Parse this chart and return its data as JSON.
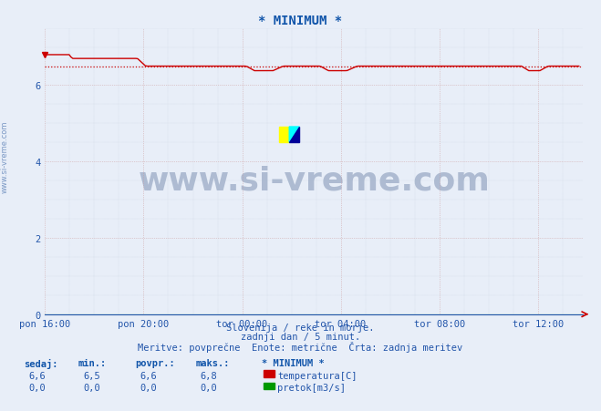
{
  "title": "* MINIMUM *",
  "title_color": "#1155aa",
  "bg_color": "#e8eef8",
  "temp_color": "#cc0000",
  "pretok_color": "#009900",
  "axis_color": "#2255aa",
  "footer_color": "#2255aa",
  "sidebar_color": "#6688bb",
  "watermark_color": "#1a3a70",
  "grid_major_color": "#cc9999",
  "grid_minor_color": "#aabbcc",
  "x_tick_labels": [
    "pon 16:00",
    "pon 20:00",
    "tor 00:00",
    "tor 04:00",
    "tor 08:00",
    "tor 12:00"
  ],
  "x_tick_positions": [
    0,
    240,
    480,
    720,
    960,
    1200
  ],
  "y_ticks": [
    0,
    2,
    4,
    6
  ],
  "ylim_max": 7.5,
  "xlim_max": 1310,
  "temp_min_val": 6.5,
  "subtitle1": "Slovenija / reke in morje.",
  "subtitle2": "zadnji dan / 5 minut.",
  "subtitle3": "Meritve: povprečne  Enote: metrične  Črta: zadnja meritev",
  "watermark": "www.si-vreme.com",
  "sidebar_txt": "www.si-vreme.com",
  "stats_hdr": [
    "sedaj:",
    "min.:",
    "povpr.:",
    "maks.:",
    "* MINIMUM *"
  ],
  "stats_temp": [
    "6,6",
    "6,5",
    "6,6",
    "6,8"
  ],
  "stats_pretok": [
    "0,0",
    "0,0",
    "0,0",
    "0,0"
  ],
  "legend_labels": [
    "temperatura[C]",
    "pretok[m3/s]"
  ],
  "legend_colors": [
    "#cc0000",
    "#009900"
  ],
  "fig_width": 6.59,
  "fig_height": 4.52,
  "fig_dpi": 100
}
